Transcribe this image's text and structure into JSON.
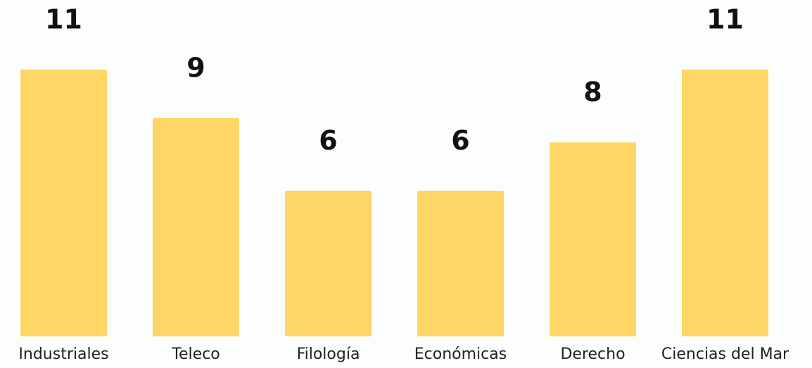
{
  "chart_data": {
    "type": "bar",
    "categories": [
      "Industriales",
      "Teleco",
      "Filología",
      "Económicas",
      "Derecho",
      "Ciencias del Mar"
    ],
    "values": [
      11,
      9,
      6,
      6,
      8,
      11
    ],
    "color": "#fdd666"
  }
}
